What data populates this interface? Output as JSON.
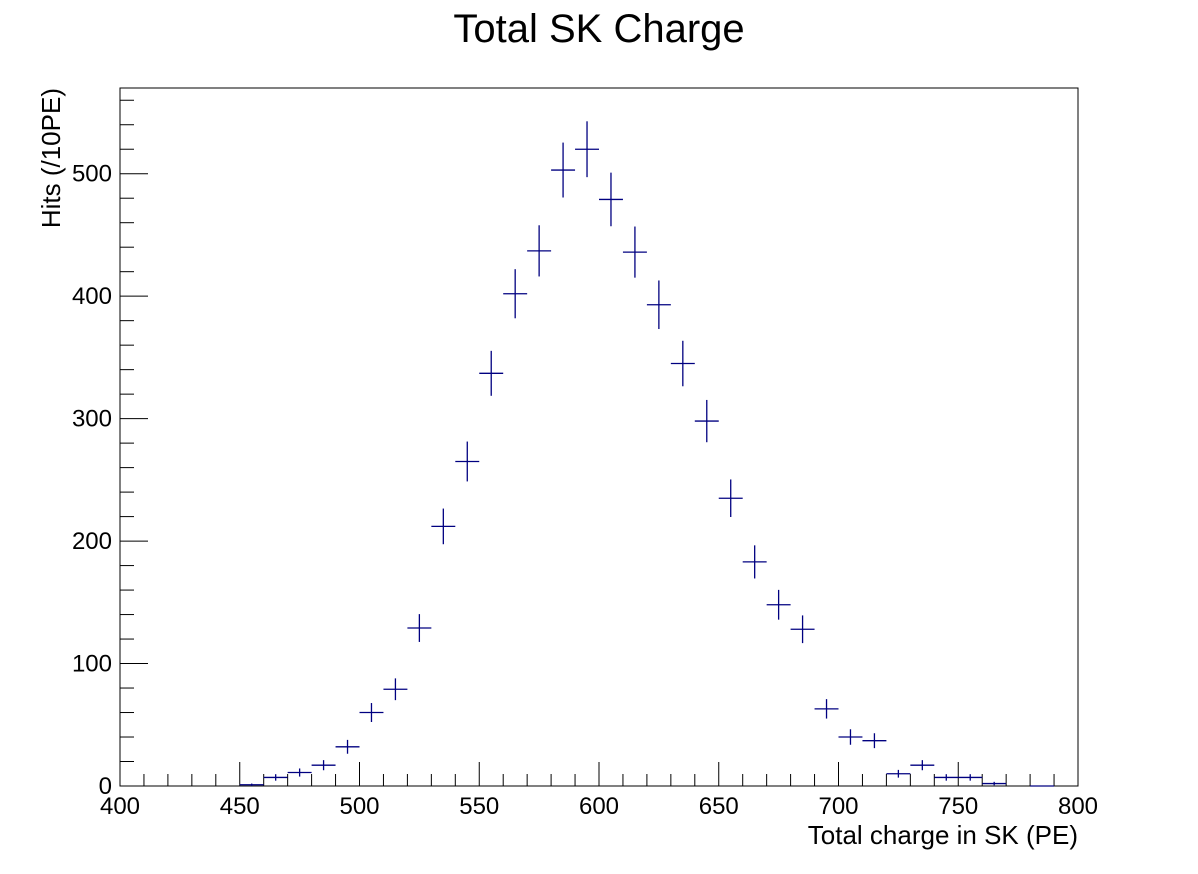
{
  "chart_data": {
    "type": "scatter",
    "title": "Total SK Charge",
    "xlabel": "Total charge in SK (PE)",
    "ylabel": "Hits (/10PE)",
    "xlim": [
      400,
      800
    ],
    "ylim": [
      0,
      570
    ],
    "xticks": [
      400,
      450,
      500,
      550,
      600,
      650,
      700,
      750,
      800
    ],
    "yticks": [
      0,
      100,
      200,
      300,
      400,
      500
    ],
    "grid": false,
    "bin_width": 10,
    "series": [
      {
        "color": "#000080",
        "x": [
          455,
          465,
          475,
          485,
          495,
          505,
          515,
          525,
          535,
          545,
          555,
          565,
          575,
          585,
          595,
          605,
          615,
          625,
          635,
          645,
          655,
          665,
          675,
          685,
          695,
          705,
          715,
          725,
          735,
          745,
          755,
          765,
          785
        ],
        "y": [
          1,
          7,
          11,
          17,
          32,
          60,
          79,
          129,
          212,
          265,
          337,
          402,
          437,
          503,
          520,
          479,
          436,
          393,
          345,
          298,
          235,
          183,
          148,
          128,
          63,
          40,
          37,
          10,
          17,
          7,
          7,
          2,
          0
        ]
      }
    ]
  }
}
